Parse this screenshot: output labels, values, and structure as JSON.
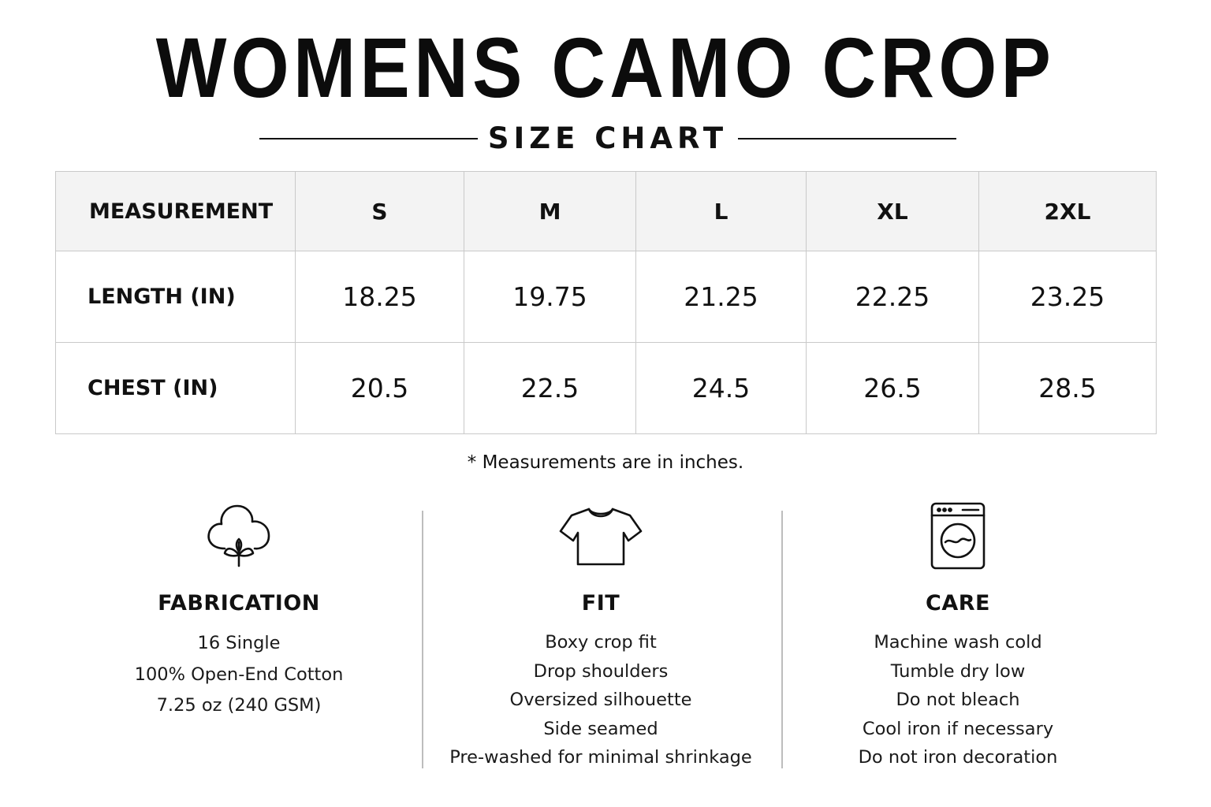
{
  "title": "WOMENS CAMO CROP",
  "subtitle": "SIZE CHART",
  "table": {
    "header": [
      "MEASUREMENT",
      "S",
      "M",
      "L",
      "XL",
      "2XL"
    ],
    "rows": [
      {
        "label": "LENGTH (IN)",
        "values": [
          "18.25",
          "19.75",
          "21.25",
          "22.25",
          "23.25"
        ]
      },
      {
        "label": "CHEST (IN)",
        "values": [
          "20.5",
          "22.5",
          "24.5",
          "26.5",
          "28.5"
        ]
      }
    ]
  },
  "note": "* Measurements are in inches.",
  "sections": [
    {
      "icon": "cotton-icon",
      "heading": "FABRICATION",
      "lines": [
        "16 Single",
        "100% Open-End Cotton",
        "7.25 oz (240 GSM)"
      ]
    },
    {
      "icon": "tshirt-icon",
      "heading": "FIT",
      "lines": [
        "Boxy crop fit",
        "Drop shoulders",
        "Oversized silhouette",
        "Side seamed",
        "Pre-washed for minimal shrinkage"
      ]
    },
    {
      "icon": "washing-machine-icon",
      "heading": "CARE",
      "lines": [
        "Machine wash cold",
        "Tumble dry low",
        "Do not bleach",
        "Cool iron if necessary",
        "Do not iron decoration"
      ]
    }
  ]
}
